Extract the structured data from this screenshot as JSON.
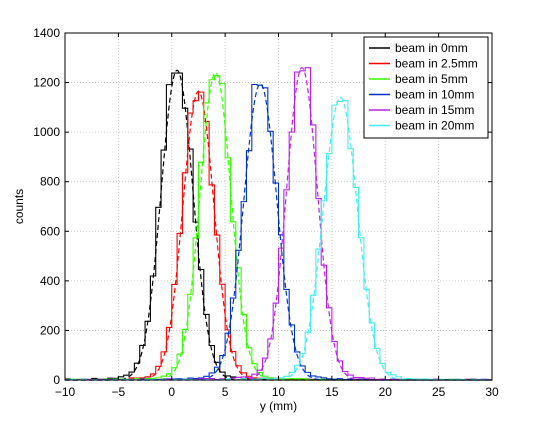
{
  "chart_data": {
    "type": "line",
    "title": "",
    "xlabel": "y (mm)",
    "ylabel": "counts",
    "xlim": [
      -10,
      30
    ],
    "ylim": [
      0,
      1400
    ],
    "xticks": [
      -10,
      -5,
      0,
      5,
      10,
      15,
      20,
      25,
      30
    ],
    "yticks": [
      0,
      200,
      400,
      600,
      800,
      1000,
      1200,
      1400
    ],
    "grid": true,
    "legend_position": "top-right",
    "series": [
      {
        "name": "beam in 0mm",
        "color": "#000000",
        "center": 0.5,
        "sigma": 1.5,
        "peak": 1250
      },
      {
        "name": "beam in 2.5mm",
        "color": "#ff0000",
        "center": 2.5,
        "sigma": 1.45,
        "peak": 1165
      },
      {
        "name": "beam in 5mm",
        "color": "#33ff00",
        "center": 4.1,
        "sigma": 1.45,
        "peak": 1240
      },
      {
        "name": "beam in 10mm",
        "color": "#0033cc",
        "center": 8.3,
        "sigma": 1.55,
        "peak": 1195
      },
      {
        "name": "beam in 15mm",
        "color": "#bb22ee",
        "center": 12.2,
        "sigma": 1.45,
        "peak": 1260
      },
      {
        "name": "beam in 20mm",
        "color": "#44eeee",
        "center": 15.8,
        "sigma": 1.6,
        "peak": 1140
      }
    ]
  }
}
